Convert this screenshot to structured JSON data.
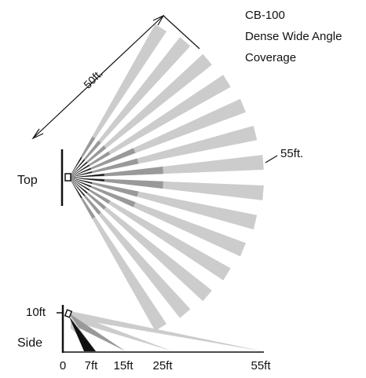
{
  "title": {
    "model": "CB-100",
    "line1": "Dense Wide Angle",
    "line2": "Coverage"
  },
  "top_view": {
    "label": "Top",
    "range_label": "50ft.",
    "max_label": "55ft.",
    "beam_count": 14
  },
  "side_view": {
    "label": "Side",
    "height_label": "10ft",
    "axis_ticks": [
      "0",
      "7ft",
      "15ft",
      "25ft",
      "55ft"
    ]
  },
  "colors": {
    "light_beam": "#cccccc",
    "mid_beam": "#999999",
    "dark_beam": "#111111",
    "ink": "#111111"
  }
}
